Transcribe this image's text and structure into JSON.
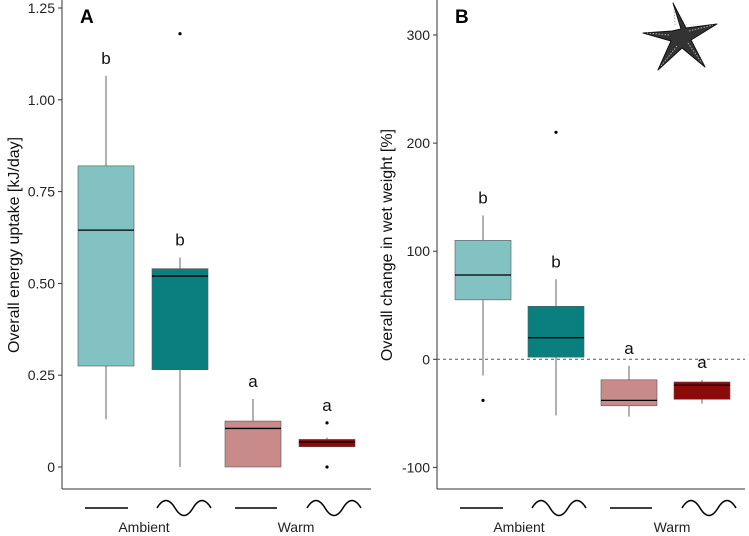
{
  "colors": {
    "ambient_flat": "#82c2c3",
    "ambient_wave": "#0a7f80",
    "warm_flat": "#c98b8a",
    "warm_wave": "#8b0b0b",
    "axis": "#333333",
    "whisker": "#666666"
  },
  "group_labels": [
    "Ambient",
    "Warm"
  ],
  "chart_data": [
    {
      "type": "box",
      "panel_label": "A",
      "ylabel": "Overall energy uptake [kJ/day]",
      "ylim": [
        -0.06,
        1.25
      ],
      "yticks": [
        0,
        0.25,
        0.5,
        0.75,
        1.0,
        1.25
      ],
      "ytick_labels": [
        "0",
        "0.25",
        "0.50",
        "0.75",
        "1.00",
        "1.25"
      ],
      "groups": [
        "Ambient",
        "Warm"
      ],
      "treatments": [
        "constant",
        "fluctuating"
      ],
      "boxes": [
        {
          "group": "Ambient",
          "treatment": "constant",
          "color": "#82c2c3",
          "min": 0.13,
          "q1": 0.275,
          "median": 0.645,
          "q3": 0.82,
          "max": 1.065,
          "outliers": [],
          "letter": "b"
        },
        {
          "group": "Ambient",
          "treatment": "fluctuating",
          "color": "#0a7f80",
          "min": 0.0,
          "q1": 0.265,
          "median": 0.52,
          "q3": 0.54,
          "max": 0.57,
          "outliers": [
            1.18
          ],
          "letter": "b"
        },
        {
          "group": "Warm",
          "treatment": "constant",
          "color": "#c98b8a",
          "min": 0.0,
          "q1": 0.0,
          "median": 0.105,
          "q3": 0.125,
          "max": 0.185,
          "outliers": [],
          "letter": "a"
        },
        {
          "group": "Warm",
          "treatment": "fluctuating",
          "color": "#8b0b0b",
          "min": 0.055,
          "q1": 0.055,
          "median": 0.068,
          "q3": 0.075,
          "max": 0.08,
          "outliers": [
            0.12,
            0.0
          ],
          "letter": "a"
        }
      ]
    },
    {
      "type": "box",
      "panel_label": "B",
      "ylabel": "Overall change in wet weight [%]",
      "ylim": [
        -120,
        325
      ],
      "yticks": [
        -100,
        0,
        100,
        200,
        300
      ],
      "ytick_labels": [
        "-100",
        "0",
        "100",
        "200",
        "300"
      ],
      "reference_line": 0,
      "groups": [
        "Ambient",
        "Warm"
      ],
      "treatments": [
        "constant",
        "fluctuating"
      ],
      "boxes": [
        {
          "group": "Ambient",
          "treatment": "constant",
          "color": "#82c2c3",
          "min": -15,
          "q1": 55,
          "median": 78,
          "q3": 110,
          "max": 133,
          "outliers": [
            -38
          ],
          "letter": "b"
        },
        {
          "group": "Ambient",
          "treatment": "fluctuating",
          "color": "#0a7f80",
          "min": -52,
          "q1": 2,
          "median": 20,
          "q3": 49,
          "max": 74,
          "outliers": [
            210
          ],
          "letter": "b"
        },
        {
          "group": "Warm",
          "treatment": "constant",
          "color": "#c98b8a",
          "min": -53,
          "q1": -43,
          "median": -38,
          "q3": -19,
          "max": -6,
          "outliers": [],
          "letter": "a"
        },
        {
          "group": "Warm",
          "treatment": "fluctuating",
          "color": "#8b0b0b",
          "min": -41,
          "q1": -37,
          "median": -24,
          "q3": -21,
          "max": -19,
          "outliers": [],
          "letter": "a"
        }
      ]
    }
  ]
}
